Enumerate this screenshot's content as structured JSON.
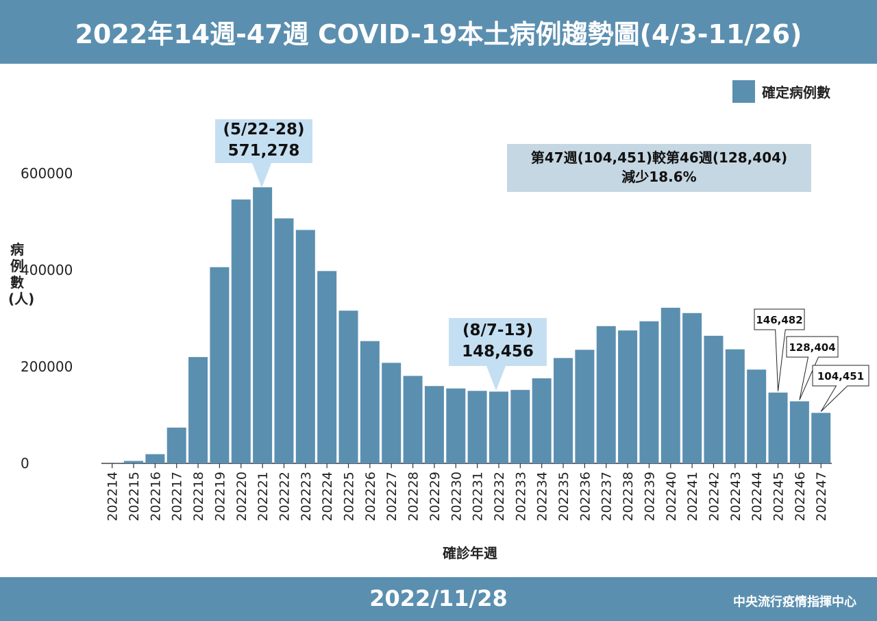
{
  "header": {
    "title": "2022年14週-47週 COVID-19本土病例趨勢圖(4/3-11/26)"
  },
  "footer": {
    "date": "2022/11/28",
    "org": "中央流行疫情指揮中心"
  },
  "legend": {
    "label": "確定病例數"
  },
  "axes": {
    "ylabel": "病例數(人)",
    "xlabel": "確診年週"
  },
  "callouts": {
    "peak": {
      "period": "(5/22-28)",
      "value": "571,278"
    },
    "trough": {
      "period": "(8/7-13)",
      "value": "148,456"
    }
  },
  "note": {
    "line1": "第47週(104,451)較第46週(128,404)",
    "line2": "減少18.6%"
  },
  "colors": {
    "bar": "#5b8fb0",
    "header": "#5b8fb0",
    "callout": "#c5dff2"
  },
  "chart_data": {
    "type": "bar",
    "categories": [
      "202214",
      "202215",
      "202216",
      "202217",
      "202218",
      "202219",
      "202220",
      "202221",
      "202222",
      "202223",
      "202224",
      "202225",
      "202226",
      "202227",
      "202228",
      "202229",
      "202230",
      "202231",
      "202232",
      "202233",
      "202234",
      "202235",
      "202236",
      "202237",
      "202238",
      "202239",
      "202240",
      "202241",
      "202242",
      "202243",
      "202244",
      "202245",
      "202246",
      "202247"
    ],
    "series": [
      {
        "name": "確定病例數",
        "values": [
          500,
          5000,
          19000,
          74000,
          220000,
          406000,
          546000,
          571278,
          507000,
          483000,
          398000,
          316000,
          253000,
          208000,
          181000,
          160000,
          155000,
          150000,
          148456,
          152000,
          176000,
          218000,
          235000,
          284000,
          275000,
          294000,
          322000,
          311000,
          264000,
          236000,
          194000,
          146482,
          128404,
          104451
        ]
      }
    ],
    "ylim": [
      0,
      600000
    ],
    "yticks": [
      "0",
      "200000",
      "400000",
      "600000"
    ],
    "data_labels": [
      {
        "category": "202245",
        "text": "146,482"
      },
      {
        "category": "202246",
        "text": "128,404"
      },
      {
        "category": "202247",
        "text": "104,451"
      }
    ],
    "legend": "top-right"
  }
}
